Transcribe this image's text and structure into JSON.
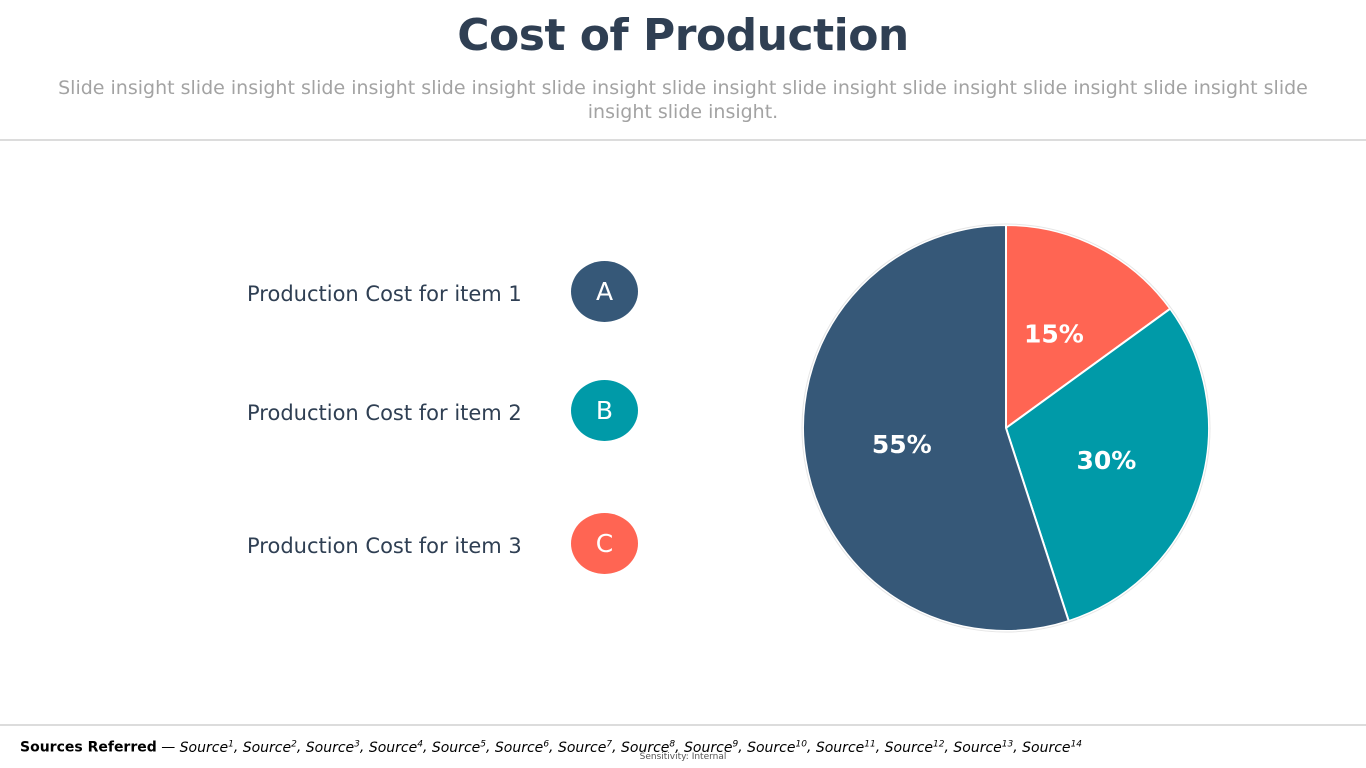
{
  "slide": {
    "title": "Cost of Production",
    "subtitle": "Slide insight slide insight slide insight slide insight slide insight slide insight slide insight slide insight slide insight slide insight slide insight slide insight."
  },
  "legend": [
    {
      "label": "Production Cost for item 1",
      "badge": "A",
      "color": "#365878"
    },
    {
      "label": "Production Cost for item 2",
      "badge": "B",
      "color": "#009aa8"
    },
    {
      "label": "Production Cost for item 3",
      "badge": "C",
      "color": "#ff6553"
    }
  ],
  "chart_data": {
    "type": "pie",
    "categories": [
      "C",
      "B",
      "A"
    ],
    "values": [
      15,
      30,
      55
    ],
    "labels": [
      "15%",
      "30%",
      "55%"
    ],
    "colors": [
      "#ff6553",
      "#009aa8",
      "#365878"
    ],
    "start_angle_deg": 0,
    "direction": "clockwise"
  },
  "footer": {
    "label": "Sources Referred",
    "separator": " — ",
    "sources": [
      "Source",
      "Source",
      "Source",
      "Source",
      "Source",
      "Source",
      "Source",
      "Source",
      "Source",
      "Source",
      "Source",
      "Source",
      "Source",
      "Source"
    ],
    "superscripts": [
      "1",
      "2",
      "3",
      "4",
      "5",
      "6",
      "7",
      "8",
      "9",
      "10",
      "11",
      "12",
      "13",
      "14"
    ],
    "sensitivity": "Sensitivity: Internal"
  }
}
